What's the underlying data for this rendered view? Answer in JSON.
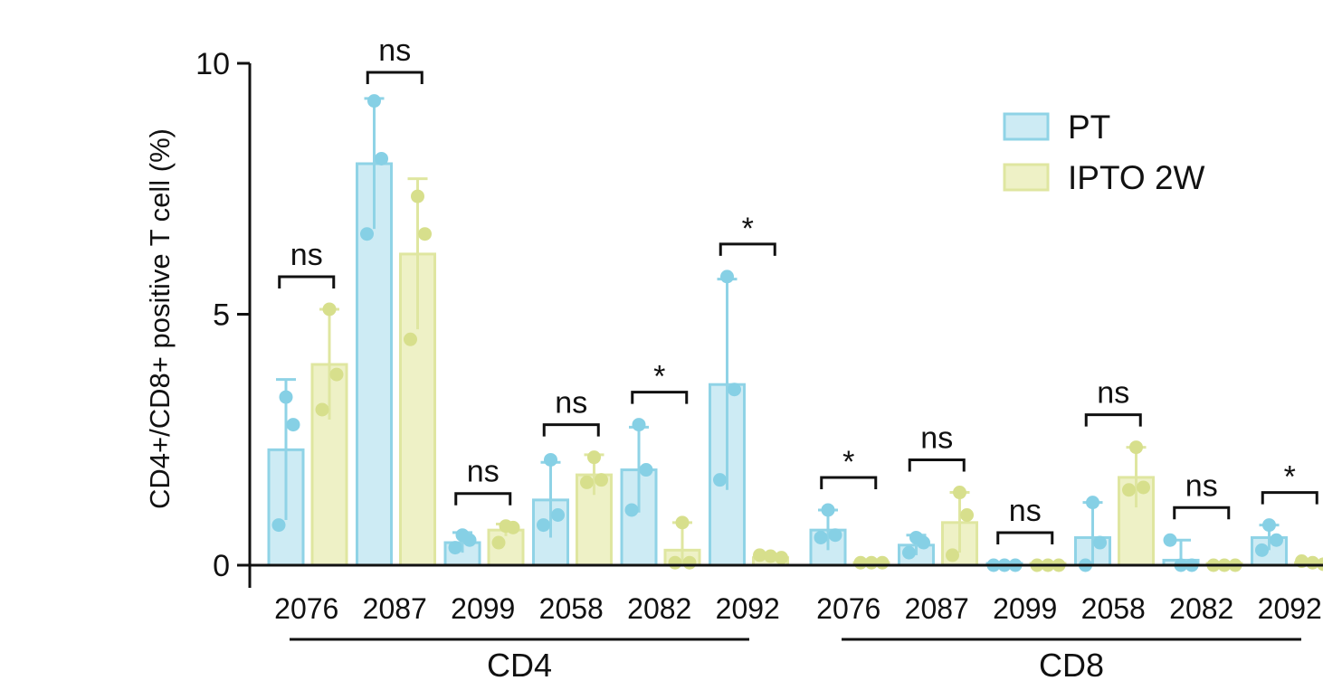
{
  "chart_data": {
    "type": "bar",
    "ylabel": "CD4+/CD8+ positive T cell (%)",
    "ylim": [
      0,
      10
    ],
    "yticks": [
      0,
      5,
      10
    ],
    "grid": false,
    "legend_position": "top-right",
    "colors": {
      "PT": {
        "fill": "#cdebf4",
        "stroke": "#8fd3e6",
        "point": "#86d0e5"
      },
      "IPTO 2W": {
        "fill": "#eef1c6",
        "stroke": "#dfe6a0",
        "point": "#d7df8c"
      }
    },
    "legend": [
      "PT",
      "IPTO 2W"
    ],
    "groups": [
      {
        "label": "CD4",
        "categories": [
          {
            "label": "2076",
            "PT": {
              "mean": 2.3,
              "sd": 1.4,
              "points": [
                3.35,
                2.8,
                0.8
              ]
            },
            "IPTO 2W": {
              "mean": 4.0,
              "sd": 1.1,
              "points": [
                5.1,
                3.8,
                3.1
              ]
            },
            "sig": "ns"
          },
          {
            "label": "2087",
            "PT": {
              "mean": 8.0,
              "sd": 1.3,
              "points": [
                9.25,
                8.1,
                6.6
              ]
            },
            "IPTO 2W": {
              "mean": 6.2,
              "sd": 1.5,
              "points": [
                7.35,
                6.6,
                4.5
              ]
            },
            "sig": "ns"
          },
          {
            "label": "2099",
            "PT": {
              "mean": 0.45,
              "sd": 0.2,
              "points": [
                0.6,
                0.5,
                0.35
              ]
            },
            "IPTO 2W": {
              "mean": 0.7,
              "sd": 0.12,
              "points": [
                0.78,
                0.75,
                0.45
              ]
            },
            "sig": "ns"
          },
          {
            "label": "2058",
            "PT": {
              "mean": 1.3,
              "sd": 0.75,
              "points": [
                2.1,
                1.0,
                0.8
              ]
            },
            "IPTO 2W": {
              "mean": 1.8,
              "sd": 0.4,
              "points": [
                2.15,
                1.7,
                1.65
              ]
            },
            "sig": "ns"
          },
          {
            "label": "2082",
            "PT": {
              "mean": 1.9,
              "sd": 0.85,
              "points": [
                2.8,
                1.9,
                1.1
              ]
            },
            "IPTO 2W": {
              "mean": 0.3,
              "sd": 0.55,
              "points": [
                0.85,
                0.05,
                0.05
              ]
            },
            "sig": "*"
          },
          {
            "label": "2092",
            "PT": {
              "mean": 3.6,
              "sd": 2.1,
              "points": [
                5.75,
                3.5,
                1.7
              ]
            },
            "IPTO 2W": {
              "mean": 0.15,
              "sd": 0.05,
              "points": [
                0.2,
                0.18,
                0.15
              ]
            },
            "sig": "*"
          }
        ]
      },
      {
        "label": "CD8",
        "categories": [
          {
            "label": "2076",
            "PT": {
              "mean": 0.7,
              "sd": 0.4,
              "points": [
                1.1,
                0.6,
                0.55
              ]
            },
            "IPTO 2W": {
              "mean": 0.05,
              "sd": 0.02,
              "points": [
                0.05,
                0.05,
                0.05
              ]
            },
            "sig": "*"
          },
          {
            "label": "2087",
            "PT": {
              "mean": 0.4,
              "sd": 0.2,
              "points": [
                0.55,
                0.45,
                0.25
              ]
            },
            "IPTO 2W": {
              "mean": 0.85,
              "sd": 0.6,
              "points": [
                1.45,
                1.0,
                0.2
              ]
            },
            "sig": "ns"
          },
          {
            "label": "2099",
            "PT": {
              "mean": 0.0,
              "sd": 0.01,
              "points": [
                0.0,
                0.0,
                0.0
              ]
            },
            "IPTO 2W": {
              "mean": 0.0,
              "sd": 0.01,
              "points": [
                0.0,
                0.0,
                0.0
              ]
            },
            "sig": "ns"
          },
          {
            "label": "2058",
            "PT": {
              "mean": 0.55,
              "sd": 0.7,
              "points": [
                1.25,
                0.45,
                0.0
              ]
            },
            "IPTO 2W": {
              "mean": 1.75,
              "sd": 0.6,
              "points": [
                2.35,
                1.55,
                1.5
              ]
            },
            "sig": "ns"
          },
          {
            "label": "2082",
            "PT": {
              "mean": 0.1,
              "sd": 0.4,
              "points": [
                0.5,
                0.0,
                0.0
              ]
            },
            "IPTO 2W": {
              "mean": 0.0,
              "sd": 0.01,
              "points": [
                0.0,
                0.0,
                0.0
              ]
            },
            "sig": "ns"
          },
          {
            "label": "2092",
            "PT": {
              "mean": 0.55,
              "sd": 0.25,
              "points": [
                0.8,
                0.5,
                0.3
              ]
            },
            "IPTO 2W": {
              "mean": 0.05,
              "sd": 0.02,
              "points": [
                0.08,
                0.05,
                0.02
              ]
            },
            "sig": "*"
          }
        ]
      }
    ]
  }
}
